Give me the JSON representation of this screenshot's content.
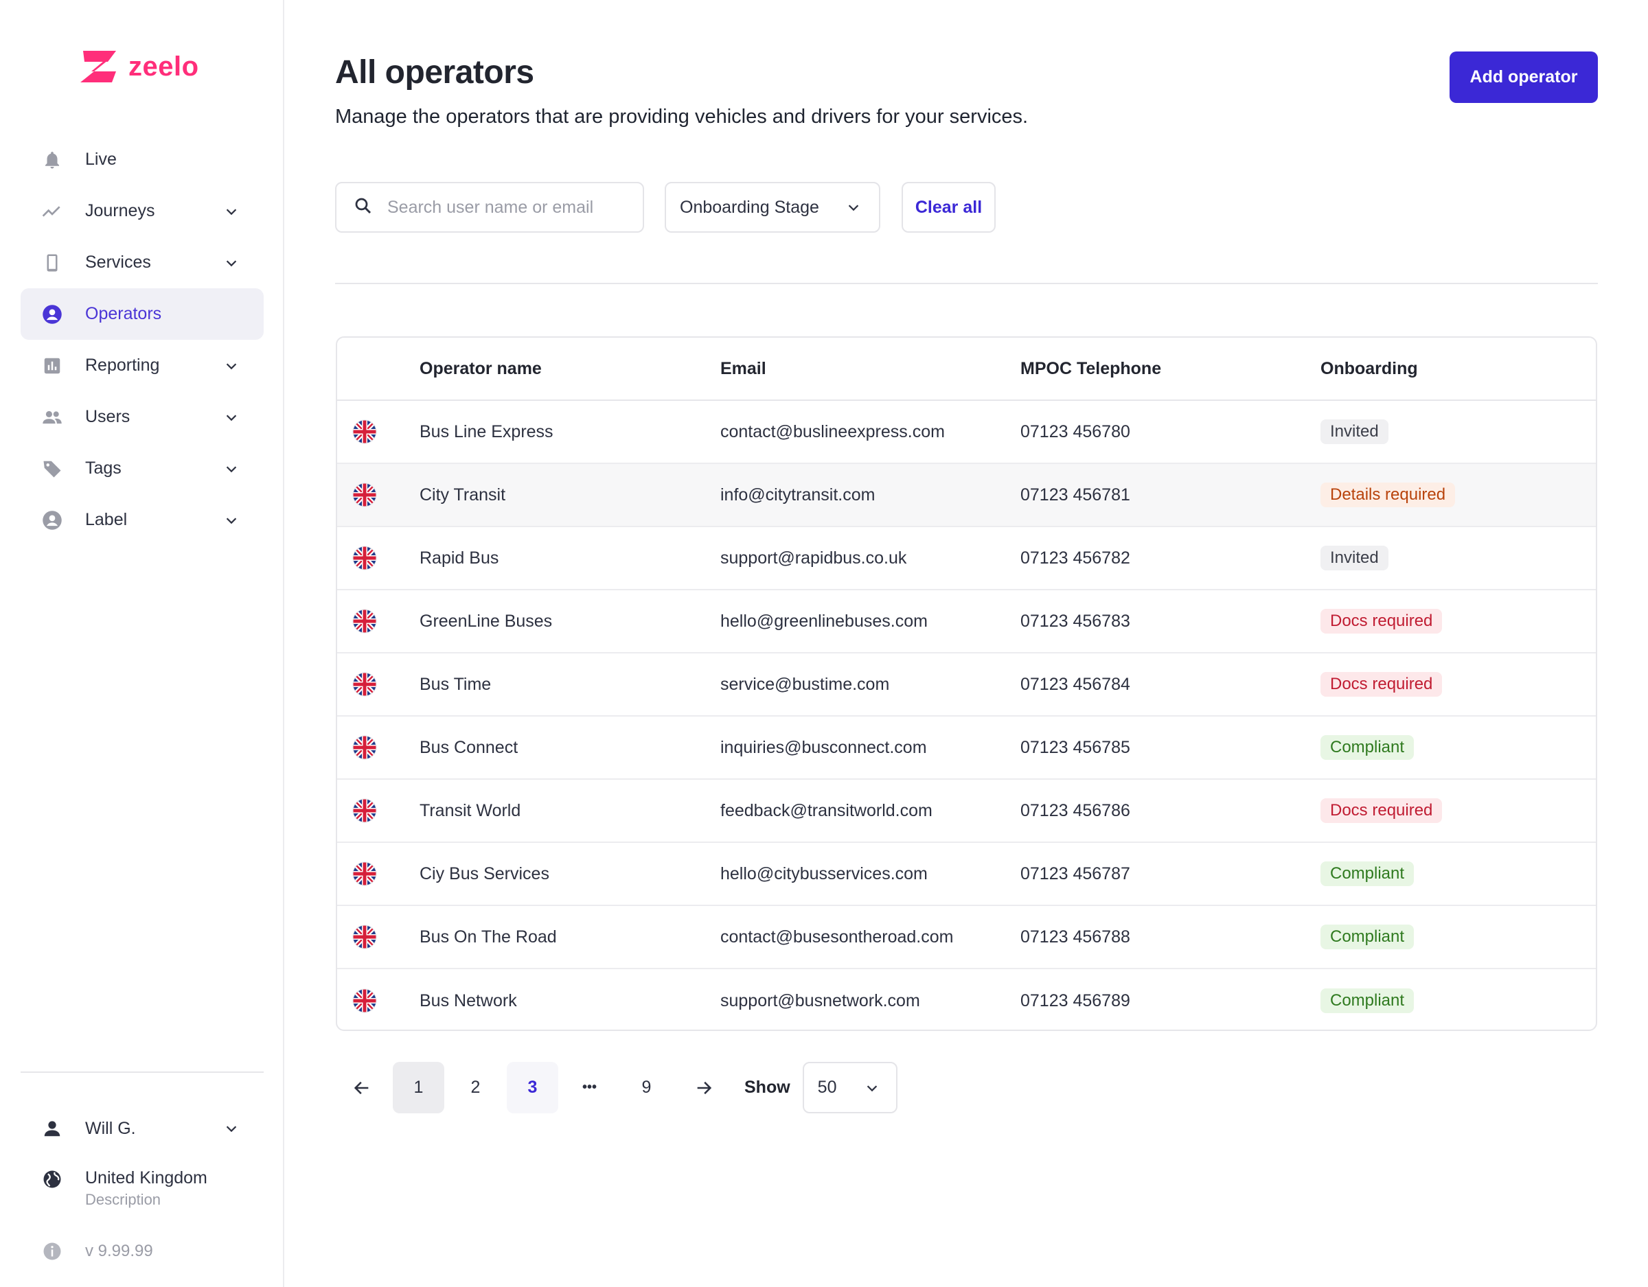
{
  "brand": {
    "name": "zeelo",
    "color": "#ff2e7a"
  },
  "sidebar": {
    "items": [
      {
        "label": "Live",
        "icon": "bell-icon",
        "has_chevron": false,
        "active": false
      },
      {
        "label": "Journeys",
        "icon": "trend-line-icon",
        "has_chevron": true,
        "active": false
      },
      {
        "label": "Services",
        "icon": "phone-device-icon",
        "has_chevron": true,
        "active": false
      },
      {
        "label": "Operators",
        "icon": "user-circle-icon",
        "has_chevron": false,
        "active": true
      },
      {
        "label": "Reporting",
        "icon": "bar-chart-icon",
        "has_chevron": true,
        "active": false
      },
      {
        "label": "Users",
        "icon": "people-icon",
        "has_chevron": true,
        "active": false
      },
      {
        "label": "Tags",
        "icon": "tag-icon",
        "has_chevron": true,
        "active": false
      },
      {
        "label": "Label",
        "icon": "user-circle-icon",
        "has_chevron": true,
        "active": false
      }
    ],
    "user": {
      "name": "Will G.",
      "icon": "person-icon"
    },
    "region": {
      "name": "United Kingdom",
      "description": "Description",
      "icon": "globe-icon"
    },
    "version": "v 9.99.99"
  },
  "header": {
    "title": "All operators",
    "subtitle": "Manage the operators that are providing vehicles and drivers for your services.",
    "add_button": "Add operator"
  },
  "filters": {
    "search_placeholder": "Search user name or email",
    "search_value": "",
    "stage_label": "Onboarding Stage",
    "clear_label": "Clear all"
  },
  "table": {
    "columns": [
      "Operator name",
      "Email",
      "MPOC Telephone",
      "Onboarding"
    ],
    "rows": [
      {
        "name": "Bus Line Express",
        "email": "contact@buslineexpress.com",
        "phone": "07123 456780",
        "status": "Invited",
        "status_type": "invited"
      },
      {
        "name": "City Transit",
        "email": "info@citytransit.com",
        "phone": "07123 456781",
        "status": "Details required",
        "status_type": "details"
      },
      {
        "name": "Rapid Bus",
        "email": "support@rapidbus.co.uk",
        "phone": "07123 456782",
        "status": "Invited",
        "status_type": "invited"
      },
      {
        "name": "GreenLine Buses",
        "email": "hello@greenlinebuses.com",
        "phone": "07123 456783",
        "status": "Docs required",
        "status_type": "docs"
      },
      {
        "name": "Bus Time",
        "email": "service@bustime.com",
        "phone": "07123 456784",
        "status": "Docs required",
        "status_type": "docs"
      },
      {
        "name": "Bus Connect",
        "email": "inquiries@busconnect.com",
        "phone": "07123 456785",
        "status": "Compliant",
        "status_type": "compliant"
      },
      {
        "name": "Transit World",
        "email": "feedback@transitworld.com",
        "phone": "07123 456786",
        "status": "Docs required",
        "status_type": "docs"
      },
      {
        "name": "Ciy Bus Services",
        "email": "hello@citybusservices.com",
        "phone": "07123 456787",
        "status": "Compliant",
        "status_type": "compliant"
      },
      {
        "name": "Bus On The Road",
        "email": "contact@busesontheroad.com",
        "phone": "07123 456788",
        "status": "Compliant",
        "status_type": "compliant"
      },
      {
        "name": "Bus Network",
        "email": "support@busnetwork.com",
        "phone": "07123 456789",
        "status": "Compliant",
        "status_type": "compliant"
      }
    ]
  },
  "pagination": {
    "pages": [
      "1",
      "2",
      "3",
      "•••",
      "9"
    ],
    "selected_page": "1",
    "current_page": "3",
    "show_label": "Show",
    "page_size": "50"
  },
  "colors": {
    "accent": "#3b28d6",
    "active_nav_text": "#4a35d6"
  }
}
